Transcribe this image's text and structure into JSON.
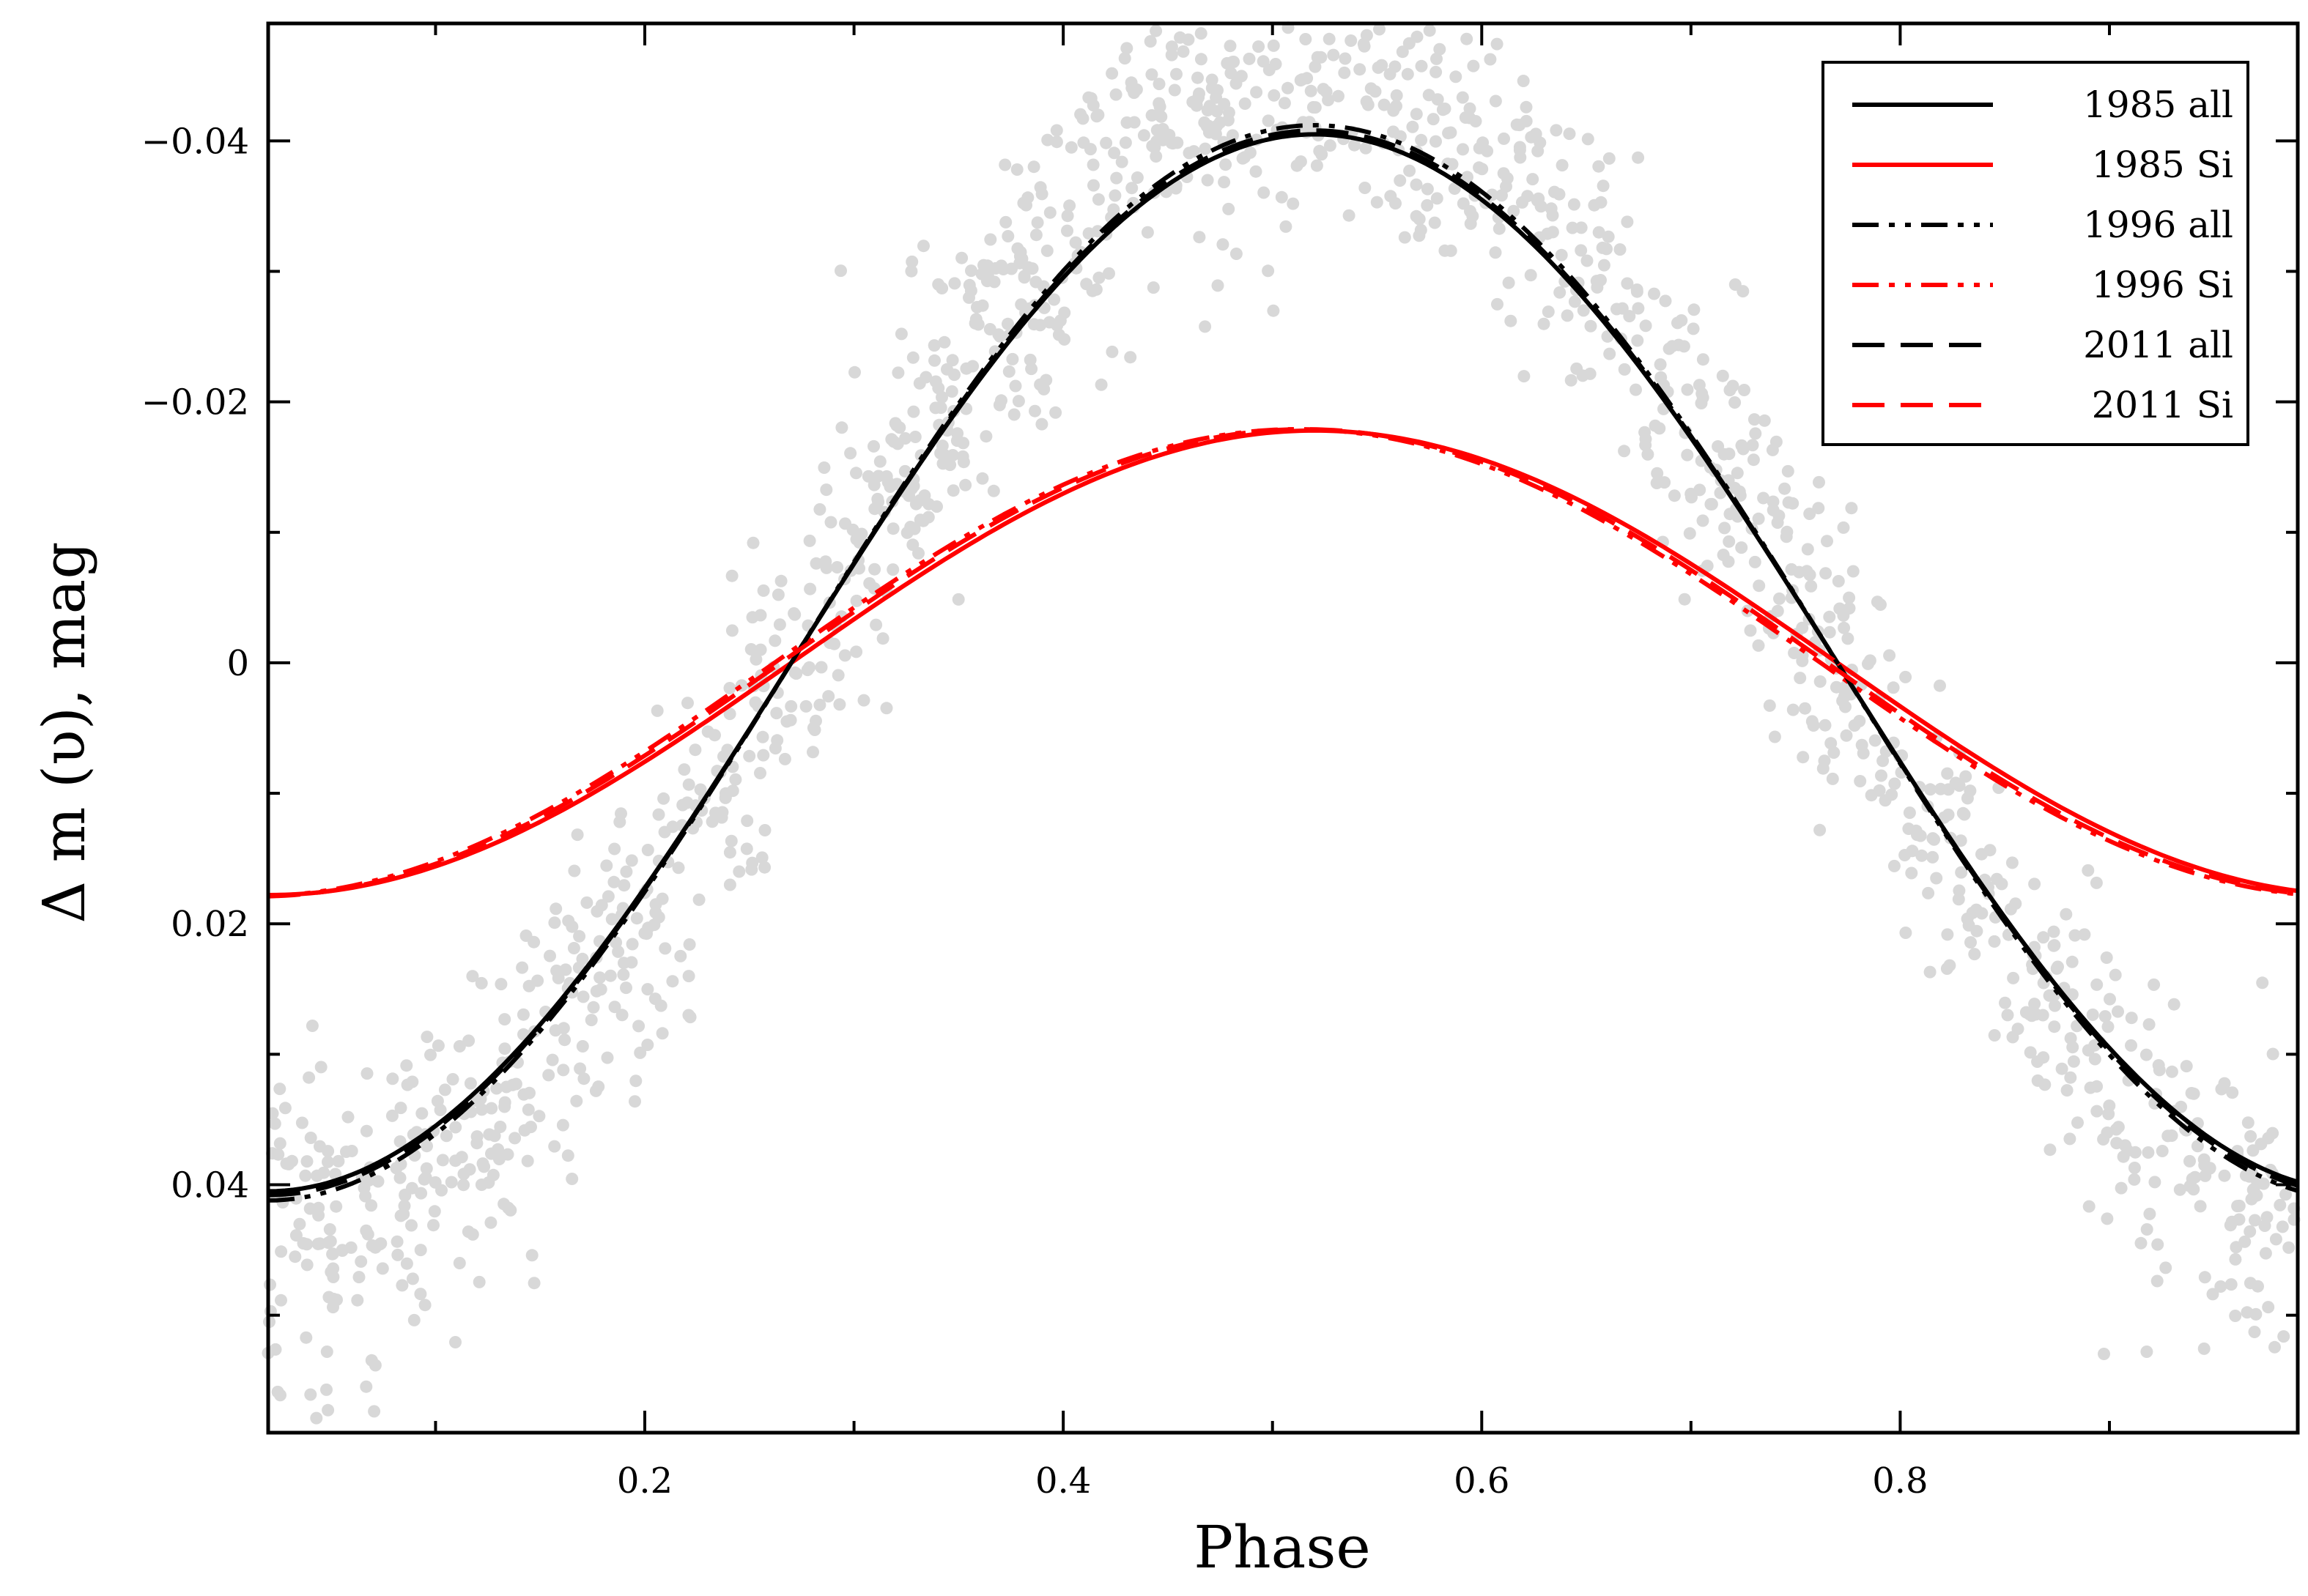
{
  "chart_data": {
    "type": "line",
    "title": "",
    "xlabel": "Phase",
    "ylabel": "Δ m (υ), mag",
    "xlim": [
      0.02,
      0.99
    ],
    "ylim": [
      0.059,
      -0.049
    ],
    "y_inverted": true,
    "xticks": [
      {
        "value": 0.2,
        "label": "0.2"
      },
      {
        "value": 0.4,
        "label": "0.4"
      },
      {
        "value": 0.6,
        "label": "0.6"
      },
      {
        "value": 0.8,
        "label": "0.8"
      }
    ],
    "yticks": [
      {
        "value": -0.04,
        "label": "−0.04"
      },
      {
        "value": -0.02,
        "label": "−0.02"
      },
      {
        "value": 0,
        "label": "0"
      },
      {
        "value": 0.02,
        "label": "0.02"
      },
      {
        "value": 0.04,
        "label": "0.04"
      }
    ],
    "legend_position": "top-right",
    "series": [
      {
        "name": "1985 all",
        "color": "#000000",
        "dash": "solid",
        "amplitude": 0.0405,
        "min_phase": 0.02,
        "max_phase": 0.535
      },
      {
        "name": "1985 Si",
        "color": "#ff0000",
        "dash": "solid",
        "amplitude": 0.0178,
        "min_phase": 0.02,
        "max_phase": 0.535
      },
      {
        "name": "1996 all",
        "color": "#000000",
        "dash": "dashdotdot",
        "amplitude": 0.0412,
        "min_phase": 0.02,
        "max_phase": 0.53
      },
      {
        "name": "1996 Si",
        "color": "#ff0000",
        "dash": "dashdotdot",
        "amplitude": 0.0179,
        "min_phase": 0.012,
        "max_phase": 0.52
      },
      {
        "name": "2011 all",
        "color": "#000000",
        "dash": "dashed",
        "amplitude": 0.0408,
        "min_phase": 0.02,
        "max_phase": 0.533
      },
      {
        "name": "2011 Si",
        "color": "#ff0000",
        "dash": "dashed",
        "amplitude": 0.0179,
        "min_phase": 0.015,
        "max_phase": 0.525
      }
    ],
    "scatter": {
      "name": "observations",
      "color": "#d8d8d8",
      "count": 1500,
      "amplitude": 0.048,
      "noise_sd": 0.006
    }
  }
}
